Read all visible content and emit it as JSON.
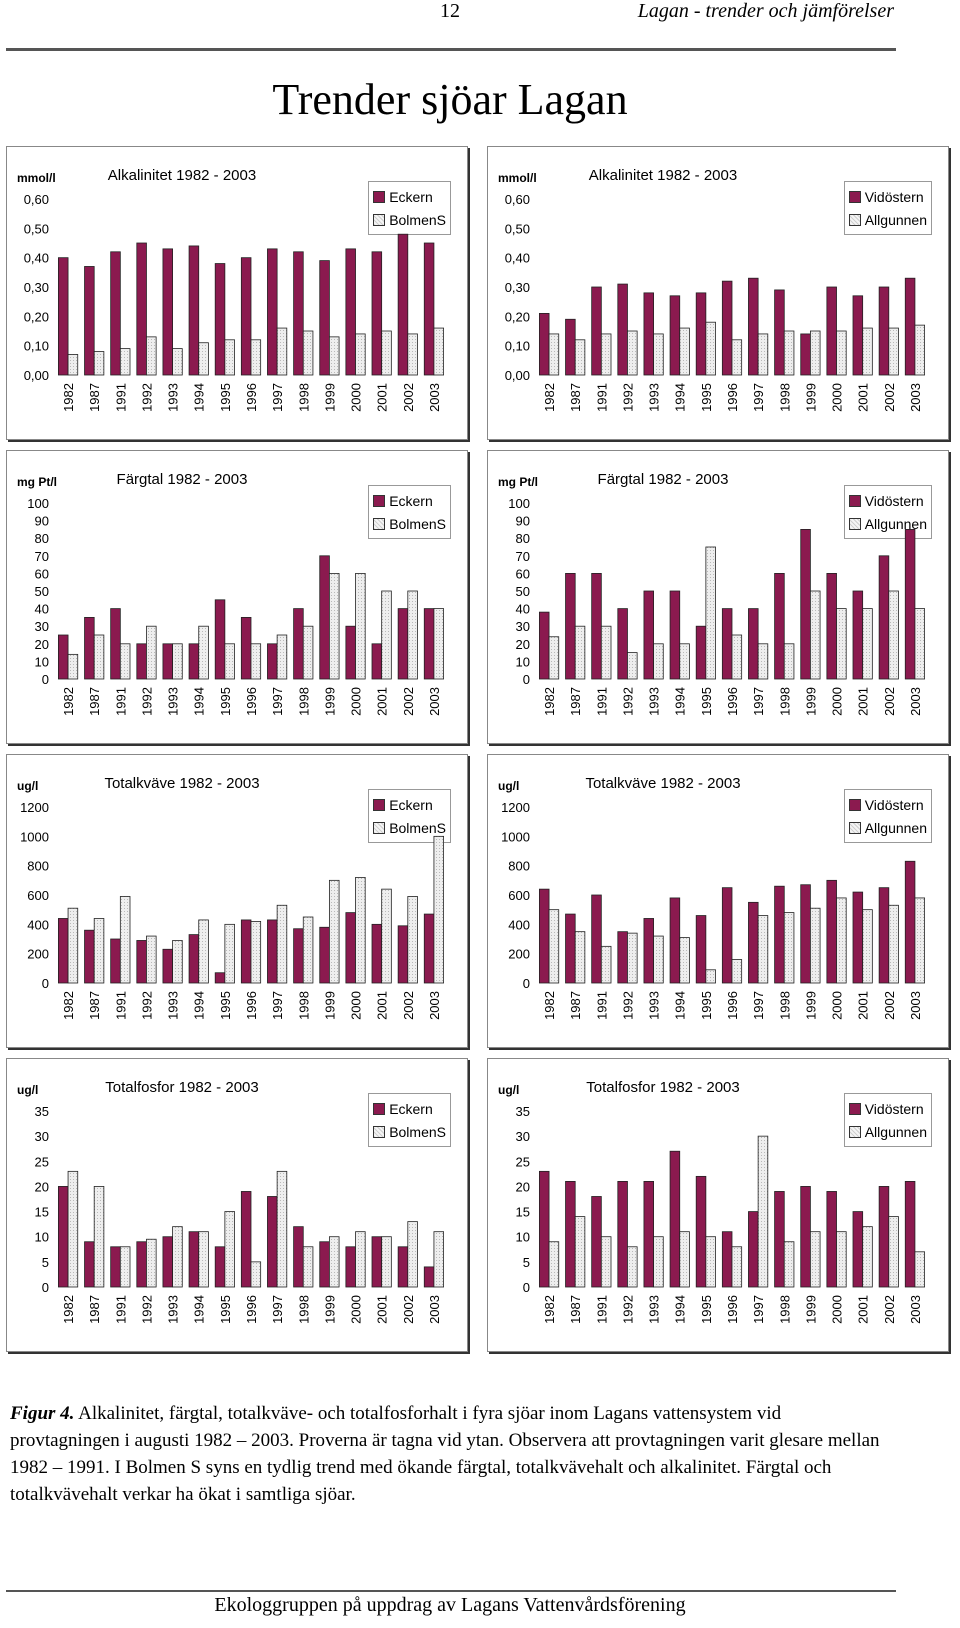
{
  "header": {
    "page_number": "12",
    "running_title": "Lagan - trender och jämförelser"
  },
  "main_title": "Trender sjöar Lagan",
  "colors": {
    "series_a": "#8b1a4f",
    "series_b": "#eeeeee"
  },
  "chart_data": [
    {
      "type": "bar",
      "title": "Alkalinitet 1982 - 2003",
      "unit": "mmol/l",
      "categories": [
        "1982",
        "1987",
        "1991",
        "1992",
        "1993",
        "1994",
        "1995",
        "1996",
        "1997",
        "1998",
        "1999",
        "2000",
        "2001",
        "2002",
        "2003"
      ],
      "series": [
        {
          "name": "Eckern",
          "values": [
            0.4,
            0.37,
            0.42,
            0.45,
            0.43,
            0.44,
            0.38,
            0.4,
            0.43,
            0.42,
            0.39,
            0.43,
            0.42,
            0.48,
            0.45
          ]
        },
        {
          "name": "BolmenS",
          "values": [
            0.07,
            0.08,
            0.09,
            0.13,
            0.09,
            0.11,
            0.12,
            0.12,
            0.16,
            0.15,
            0.13,
            0.14,
            0.15,
            0.14,
            0.16
          ]
        }
      ],
      "ylim": [
        0,
        0.6
      ],
      "ytick_labels": [
        "0,00",
        "0,10",
        "0,20",
        "0,30",
        "0,40",
        "0,50",
        "0,60"
      ],
      "legend_position": "top-right"
    },
    {
      "type": "bar",
      "title": "Alkalinitet 1982 - 2003",
      "unit": "mmol/l",
      "categories": [
        "1982",
        "1987",
        "1991",
        "1992",
        "1993",
        "1994",
        "1995",
        "1996",
        "1997",
        "1998",
        "1999",
        "2000",
        "2001",
        "2002",
        "2003"
      ],
      "series": [
        {
          "name": "Vidöstern",
          "values": [
            0.21,
            0.19,
            0.3,
            0.31,
            0.28,
            0.27,
            0.28,
            0.32,
            0.33,
            0.29,
            0.14,
            0.3,
            0.27,
            0.3,
            0.33
          ]
        },
        {
          "name": "Allgunnen",
          "values": [
            0.14,
            0.12,
            0.14,
            0.15,
            0.14,
            0.16,
            0.18,
            0.12,
            0.14,
            0.15,
            0.15,
            0.15,
            0.16,
            0.16,
            0.17
          ]
        }
      ],
      "ylim": [
        0,
        0.6
      ],
      "ytick_labels": [
        "0,00",
        "0,10",
        "0,20",
        "0,30",
        "0,40",
        "0,50",
        "0,60"
      ],
      "legend_position": "top-right"
    },
    {
      "type": "bar",
      "title": "Färgtal 1982 - 2003",
      "unit": "mg Pt/l",
      "categories": [
        "1982",
        "1987",
        "1991",
        "1992",
        "1993",
        "1994",
        "1995",
        "1996",
        "1997",
        "1998",
        "1999",
        "2000",
        "2001",
        "2002",
        "2003"
      ],
      "series": [
        {
          "name": "Eckern",
          "values": [
            25,
            35,
            40,
            20,
            20,
            20,
            45,
            35,
            20,
            40,
            70,
            30,
            20,
            40,
            40
          ]
        },
        {
          "name": "BolmenS",
          "values": [
            14,
            25,
            20,
            30,
            20,
            30,
            20,
            20,
            25,
            30,
            60,
            60,
            50,
            50,
            40
          ]
        }
      ],
      "ylim": [
        0,
        100
      ],
      "ytick_labels": [
        "0",
        "10",
        "20",
        "30",
        "40",
        "50",
        "60",
        "70",
        "80",
        "90",
        "100"
      ],
      "legend_position": "top-right"
    },
    {
      "type": "bar",
      "title": "Färgtal 1982 - 2003",
      "unit": "mg Pt/l",
      "categories": [
        "1982",
        "1987",
        "1991",
        "1992",
        "1993",
        "1994",
        "1995",
        "1996",
        "1997",
        "1998",
        "1999",
        "2000",
        "2001",
        "2002",
        "2003"
      ],
      "series": [
        {
          "name": "Vidöstern",
          "values": [
            38,
            60,
            60,
            40,
            50,
            50,
            30,
            40,
            40,
            60,
            85,
            60,
            50,
            70,
            85
          ]
        },
        {
          "name": "Allgunnen",
          "values": [
            24,
            30,
            30,
            15,
            20,
            20,
            75,
            25,
            20,
            20,
            50,
            40,
            40,
            50,
            40
          ]
        }
      ],
      "ylim": [
        0,
        100
      ],
      "ytick_labels": [
        "0",
        "10",
        "20",
        "30",
        "40",
        "50",
        "60",
        "70",
        "80",
        "90",
        "100"
      ],
      "legend_position": "top-right"
    },
    {
      "type": "bar",
      "title": "Totalkväve 1982 - 2003",
      "unit": "ug/l",
      "categories": [
        "1982",
        "1987",
        "1991",
        "1992",
        "1993",
        "1994",
        "1995",
        "1996",
        "1997",
        "1998",
        "1999",
        "2000",
        "2001",
        "2002",
        "2003"
      ],
      "series": [
        {
          "name": "Eckern",
          "values": [
            440,
            360,
            300,
            290,
            230,
            330,
            70,
            430,
            430,
            370,
            380,
            480,
            400,
            390,
            470
          ]
        },
        {
          "name": "BolmenS",
          "values": [
            510,
            440,
            590,
            320,
            290,
            430,
            400,
            420,
            530,
            450,
            700,
            720,
            640,
            590,
            1000
          ]
        }
      ],
      "ylim": [
        0,
        1200
      ],
      "ytick_labels": [
        "0",
        "200",
        "400",
        "600",
        "800",
        "1000",
        "1200"
      ],
      "legend_position": "top-right"
    },
    {
      "type": "bar",
      "title": "Totalkväve 1982 - 2003",
      "unit": "ug/l",
      "categories": [
        "1982",
        "1987",
        "1991",
        "1992",
        "1993",
        "1994",
        "1995",
        "1996",
        "1997",
        "1998",
        "1999",
        "2000",
        "2001",
        "2002",
        "2003"
      ],
      "series": [
        {
          "name": "Vidöstern",
          "values": [
            640,
            470,
            600,
            350,
            440,
            580,
            460,
            650,
            550,
            660,
            670,
            700,
            620,
            650,
            830
          ]
        },
        {
          "name": "Allgunnen",
          "values": [
            500,
            350,
            250,
            340,
            320,
            310,
            90,
            160,
            460,
            480,
            510,
            580,
            500,
            530,
            580
          ]
        }
      ],
      "ylim": [
        0,
        1200
      ],
      "ytick_labels": [
        "0",
        "200",
        "400",
        "600",
        "800",
        "1000",
        "1200"
      ],
      "legend_position": "top-right"
    },
    {
      "type": "bar",
      "title": "Totalfosfor 1982 - 2003",
      "unit": "ug/l",
      "categories": [
        "1982",
        "1987",
        "1991",
        "1992",
        "1993",
        "1994",
        "1995",
        "1996",
        "1997",
        "1998",
        "1999",
        "2000",
        "2001",
        "2002",
        "2003"
      ],
      "series": [
        {
          "name": "Eckern",
          "values": [
            20,
            9,
            8,
            9,
            10,
            11,
            8,
            19,
            18,
            12,
            9,
            8,
            10,
            8,
            4
          ]
        },
        {
          "name": "BolmenS",
          "values": [
            23,
            20,
            8,
            9.5,
            12,
            11,
            15,
            5,
            23,
            8,
            10,
            11,
            10,
            13,
            11
          ]
        }
      ],
      "ylim": [
        0,
        35
      ],
      "ytick_labels": [
        "0",
        "5",
        "10",
        "15",
        "20",
        "25",
        "30",
        "35"
      ],
      "legend_position": "top-right"
    },
    {
      "type": "bar",
      "title": "Totalfosfor 1982 - 2003",
      "unit": "ug/l",
      "categories": [
        "1982",
        "1987",
        "1991",
        "1992",
        "1993",
        "1994",
        "1995",
        "1996",
        "1997",
        "1998",
        "1999",
        "2000",
        "2001",
        "2002",
        "2003"
      ],
      "series": [
        {
          "name": "Vidöstern",
          "values": [
            23,
            21,
            18,
            21,
            21,
            27,
            22,
            11,
            15,
            19,
            20,
            19,
            15,
            20,
            21
          ]
        },
        {
          "name": "Allgunnen",
          "values": [
            9,
            14,
            10,
            8,
            10,
            11,
            10,
            8,
            30,
            9,
            11,
            11,
            12,
            14,
            7
          ]
        }
      ],
      "ylim": [
        0,
        35
      ],
      "ytick_labels": [
        "0",
        "5",
        "10",
        "15",
        "20",
        "25",
        "30",
        "35"
      ],
      "legend_position": "top-right"
    }
  ],
  "caption": {
    "label": "Figur 4.",
    "text": " Alkalinitet, färgtal, totalkväve- och totalfosforhalt i fyra sjöar inom Lagans vattensystem vid provtagningen i augusti 1982 – 2003. Proverna är tagna vid ytan. Observera att provtagningen varit glesare mellan 1982 – 1991. I Bolmen S syns en tydlig trend med ökande färgtal, totalkvävehalt och alkalinitet. Färgtal och totalkvävehalt verkar ha ökat i samtliga sjöar."
  },
  "footer": "Ekologgruppen på uppdrag av Lagans Vattenvårdsförening"
}
